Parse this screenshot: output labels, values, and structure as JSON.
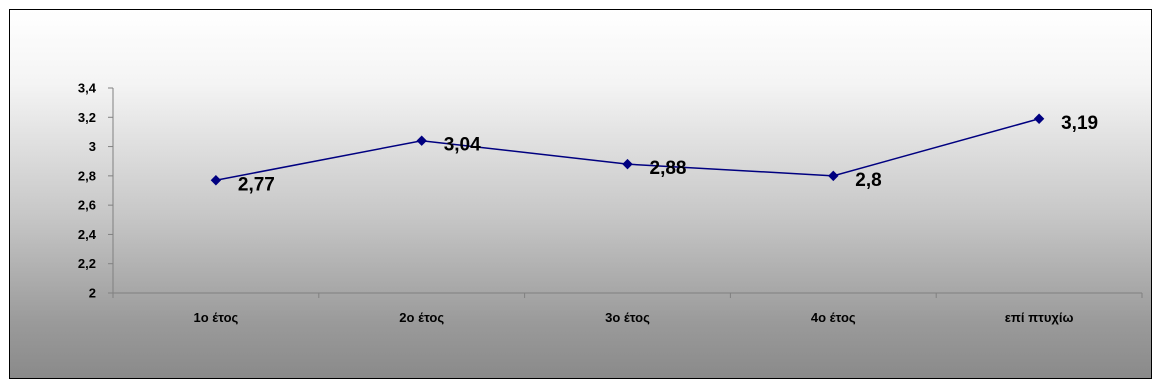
{
  "chart_data": {
    "type": "line",
    "title": "",
    "xlabel": "",
    "ylabel": "",
    "categories": [
      "1ο έτος",
      "2ο έτος",
      "3ο έτος",
      "4ο έτος",
      "επί πτυχίω"
    ],
    "series": [
      {
        "values": [
          2.77,
          3.04,
          2.88,
          2.8,
          3.19
        ],
        "data_labels": [
          "2,77",
          "3,04",
          "2,88",
          "2,8",
          "3,19"
        ],
        "color": "#000080"
      }
    ],
    "ylim": [
      2,
      3.4
    ],
    "y_ticks": [
      2,
      2.2,
      2.4,
      2.6,
      2.8,
      3,
      3.2,
      3.4
    ],
    "y_tick_labels": [
      "2",
      "2,2",
      "2,4",
      "2,6",
      "2,8",
      "3",
      "3,2",
      "3,4"
    ],
    "grid": false,
    "legend": "none",
    "axis_color": "#808080",
    "marker": "diamond"
  }
}
